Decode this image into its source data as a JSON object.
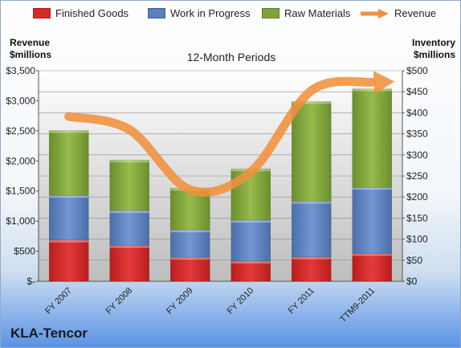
{
  "legend": {
    "finished_goods": "Finished Goods",
    "work_in_progress": "Work in Progress",
    "raw_materials": "Raw Materials",
    "revenue": "Revenue"
  },
  "left_axis_title": [
    "Revenue",
    "$millions"
  ],
  "right_axis_title": [
    "Inventory",
    "$millions"
  ],
  "company": "KLA-Tencor",
  "colors": {
    "finished_goods": "#d42a2a",
    "work_in_progress": "#5b7fbd",
    "raw_materials": "#7ea33a",
    "revenue": "#f0913c"
  },
  "chart_data": {
    "type": "bar",
    "stacked": true,
    "title": "12-Month Periods",
    "categories": [
      "FY 2007",
      "FY 2008",
      "FY 2009",
      "FY 2010",
      "FY 2011",
      "TTM9-2011"
    ],
    "series": [
      {
        "name": "Finished Goods",
        "axis": "right",
        "values": [
          98,
          85,
          57,
          48,
          58,
          66
        ]
      },
      {
        "name": "Work in Progress",
        "axis": "right",
        "values": [
          106,
          83,
          65,
          97,
          132,
          157
        ]
      },
      {
        "name": "Raw Materials",
        "axis": "right",
        "values": [
          154,
          120,
          99,
          122,
          237,
          234
        ]
      },
      {
        "name": "Revenue",
        "type": "line",
        "axis": "left",
        "values": [
          2740,
          2520,
          1520,
          1820,
          3170,
          3310
        ]
      }
    ],
    "left_axis": {
      "ylim": [
        0,
        3500
      ],
      "ticks": [
        "$-",
        "$500",
        "$1,000",
        "$1,500",
        "$2,000",
        "$2,500",
        "$3,000",
        "$3,500"
      ]
    },
    "right_axis": {
      "ylim": [
        0,
        500
      ],
      "ticks": [
        "$0",
        "$50",
        "$100",
        "$150",
        "$200",
        "$250",
        "$300",
        "$350",
        "$400",
        "$450",
        "$500"
      ]
    },
    "grid": true,
    "legend_position": "top"
  }
}
